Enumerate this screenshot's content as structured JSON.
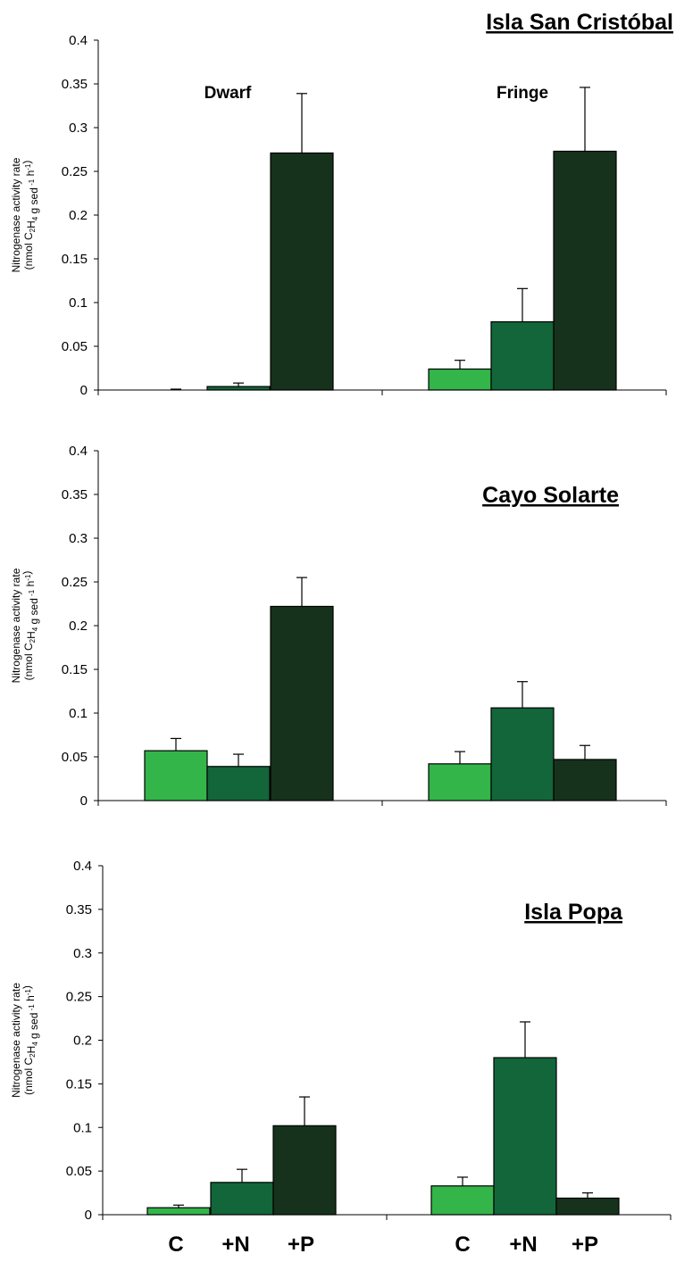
{
  "chart_data": [
    {
      "type": "bar",
      "title": "Isla San Cristóbal",
      "groups": [
        "Dwarf",
        "Fringe"
      ],
      "categories": [
        "C",
        "+N",
        "+P"
      ],
      "ylim": [
        0,
        0.4
      ],
      "yticks": [
        "0",
        "0.05",
        "0.1",
        "0.15",
        "0.2",
        "0.25",
        "0.3",
        "0.35",
        "0.4"
      ],
      "ylabel": {
        "line1": "Nitrogenase activity rate",
        "pre": "(nmol C",
        "sub1": "2",
        "mid1": "H",
        "sub2": "4",
        "mid2": " g sed",
        "sup1": " -1",
        "mid3": " h",
        "sup2": "-1",
        "post": ")"
      },
      "group_labels_shown": true,
      "values": [
        [
          0.0,
          0.004,
          0.271
        ],
        [
          0.024,
          0.078,
          0.273
        ]
      ],
      "errors": [
        [
          0.001,
          0.004,
          0.068
        ],
        [
          0.01,
          0.038,
          0.073
        ]
      ]
    },
    {
      "type": "bar",
      "title": "Cayo Solarte",
      "groups": [
        "Dwarf",
        "Fringe"
      ],
      "categories": [
        "C",
        "+N",
        "+P"
      ],
      "ylim": [
        0,
        0.4
      ],
      "yticks": [
        "0",
        "0.05",
        "0.1",
        "0.15",
        "0.2",
        "0.25",
        "0.3",
        "0.35",
        "0.4"
      ],
      "ylabel": {
        "line1": "Nitrogenase activity rate",
        "pre": "(nmol C",
        "sub1": "2",
        "mid1": "H",
        "sub2": "4",
        "mid2": " g sed",
        "sup1": " -1",
        "mid3": " h",
        "sup2": "-1",
        "post": ")"
      },
      "group_labels_shown": false,
      "values": [
        [
          0.057,
          0.039,
          0.222
        ],
        [
          0.042,
          0.106,
          0.047
        ]
      ],
      "errors": [
        [
          0.014,
          0.014,
          0.033
        ],
        [
          0.014,
          0.03,
          0.016
        ]
      ]
    },
    {
      "type": "bar",
      "title": "Isla Popa",
      "groups": [
        "Dwarf",
        "Fringe"
      ],
      "categories": [
        "C",
        "+N",
        "+P"
      ],
      "ylim": [
        0,
        0.4
      ],
      "yticks": [
        "0",
        "0.05",
        "0.1",
        "0.15",
        "0.2",
        "0.25",
        "0.3",
        "0.35",
        "0.4"
      ],
      "ylabel": {
        "line1": "Nitrogenase activity rate",
        "pre": "(nmol C",
        "sub1": "2",
        "mid1": "H",
        "sub2": "4",
        "mid2": " g sed",
        "sup1": " -1",
        "mid3": " h",
        "sup2": "-1",
        "post": ")"
      },
      "group_labels_shown": false,
      "values": [
        [
          0.008,
          0.037,
          0.102
        ],
        [
          0.033,
          0.18,
          0.019
        ]
      ],
      "errors": [
        [
          0.003,
          0.015,
          0.033
        ],
        [
          0.01,
          0.041,
          0.006
        ]
      ]
    }
  ],
  "x_category_labels": [
    "C",
    "+N",
    "+P",
    "C",
    "+N",
    "+P"
  ],
  "colors": {
    "C": "#33b54a",
    "+N": "#12663a",
    "+P": "#16321c",
    "axis": "#000000",
    "bar_outline": "#000000"
  }
}
